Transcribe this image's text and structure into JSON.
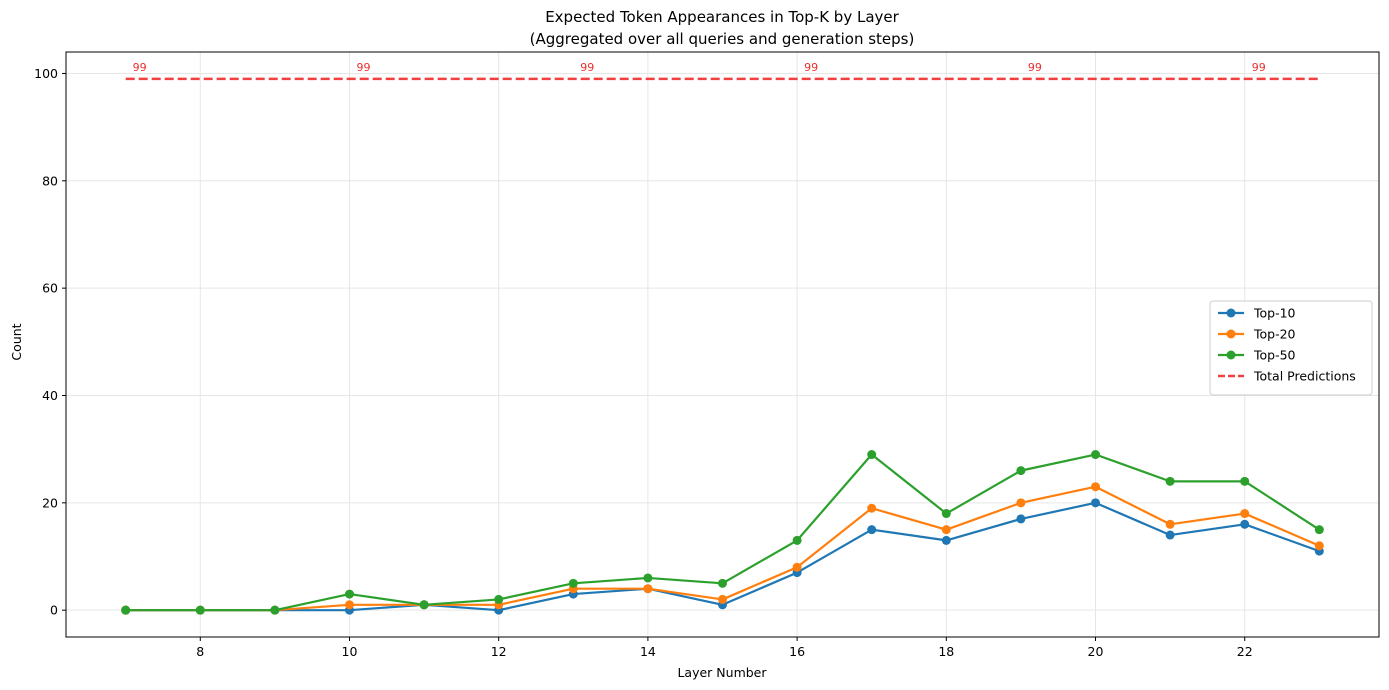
{
  "chart_data": {
    "type": "line",
    "title": "Expected Token Appearances in Top-K by Layer",
    "subtitle": "(Aggregated over all queries and generation steps)",
    "xlabel": "Layer Number",
    "ylabel": "Count",
    "xlim": [
      6.2,
      23.8
    ],
    "ylim": [
      -5,
      104
    ],
    "xticks": [
      8,
      10,
      12,
      14,
      16,
      18,
      20,
      22
    ],
    "yticks": [
      0,
      20,
      40,
      60,
      80,
      100
    ],
    "grid": true,
    "legend_position": "center-right",
    "x": [
      7,
      8,
      9,
      10,
      11,
      12,
      13,
      14,
      15,
      16,
      17,
      18,
      19,
      20,
      21,
      22,
      23
    ],
    "series": [
      {
        "name": "Top-10",
        "color": "#1f77b4",
        "marker": "circle",
        "values": [
          0,
          0,
          0,
          0,
          1,
          0,
          3,
          4,
          1,
          7,
          15,
          13,
          17,
          20,
          14,
          16,
          11
        ]
      },
      {
        "name": "Top-20",
        "color": "#ff7f0e",
        "marker": "circle",
        "values": [
          0,
          0,
          0,
          1,
          1,
          1,
          4,
          4,
          2,
          8,
          19,
          15,
          20,
          23,
          16,
          18,
          12
        ]
      },
      {
        "name": "Top-50",
        "color": "#2ca02c",
        "marker": "circle",
        "values": [
          0,
          0,
          0,
          3,
          1,
          2,
          5,
          6,
          5,
          13,
          29,
          18,
          26,
          29,
          24,
          24,
          15
        ]
      },
      {
        "name": "Total Predictions",
        "color": "#f04040",
        "style": "dashed",
        "values": [
          99,
          99,
          99,
          99,
          99,
          99,
          99,
          99,
          99,
          99,
          99,
          99,
          99,
          99,
          99,
          99,
          99
        ]
      }
    ],
    "annotations": [
      {
        "x": 7,
        "y": 99,
        "text": "99"
      },
      {
        "x": 10,
        "y": 99,
        "text": "99"
      },
      {
        "x": 13,
        "y": 99,
        "text": "99"
      },
      {
        "x": 16,
        "y": 99,
        "text": "99"
      },
      {
        "x": 19,
        "y": 99,
        "text": "99"
      },
      {
        "x": 22,
        "y": 99,
        "text": "99"
      }
    ]
  }
}
